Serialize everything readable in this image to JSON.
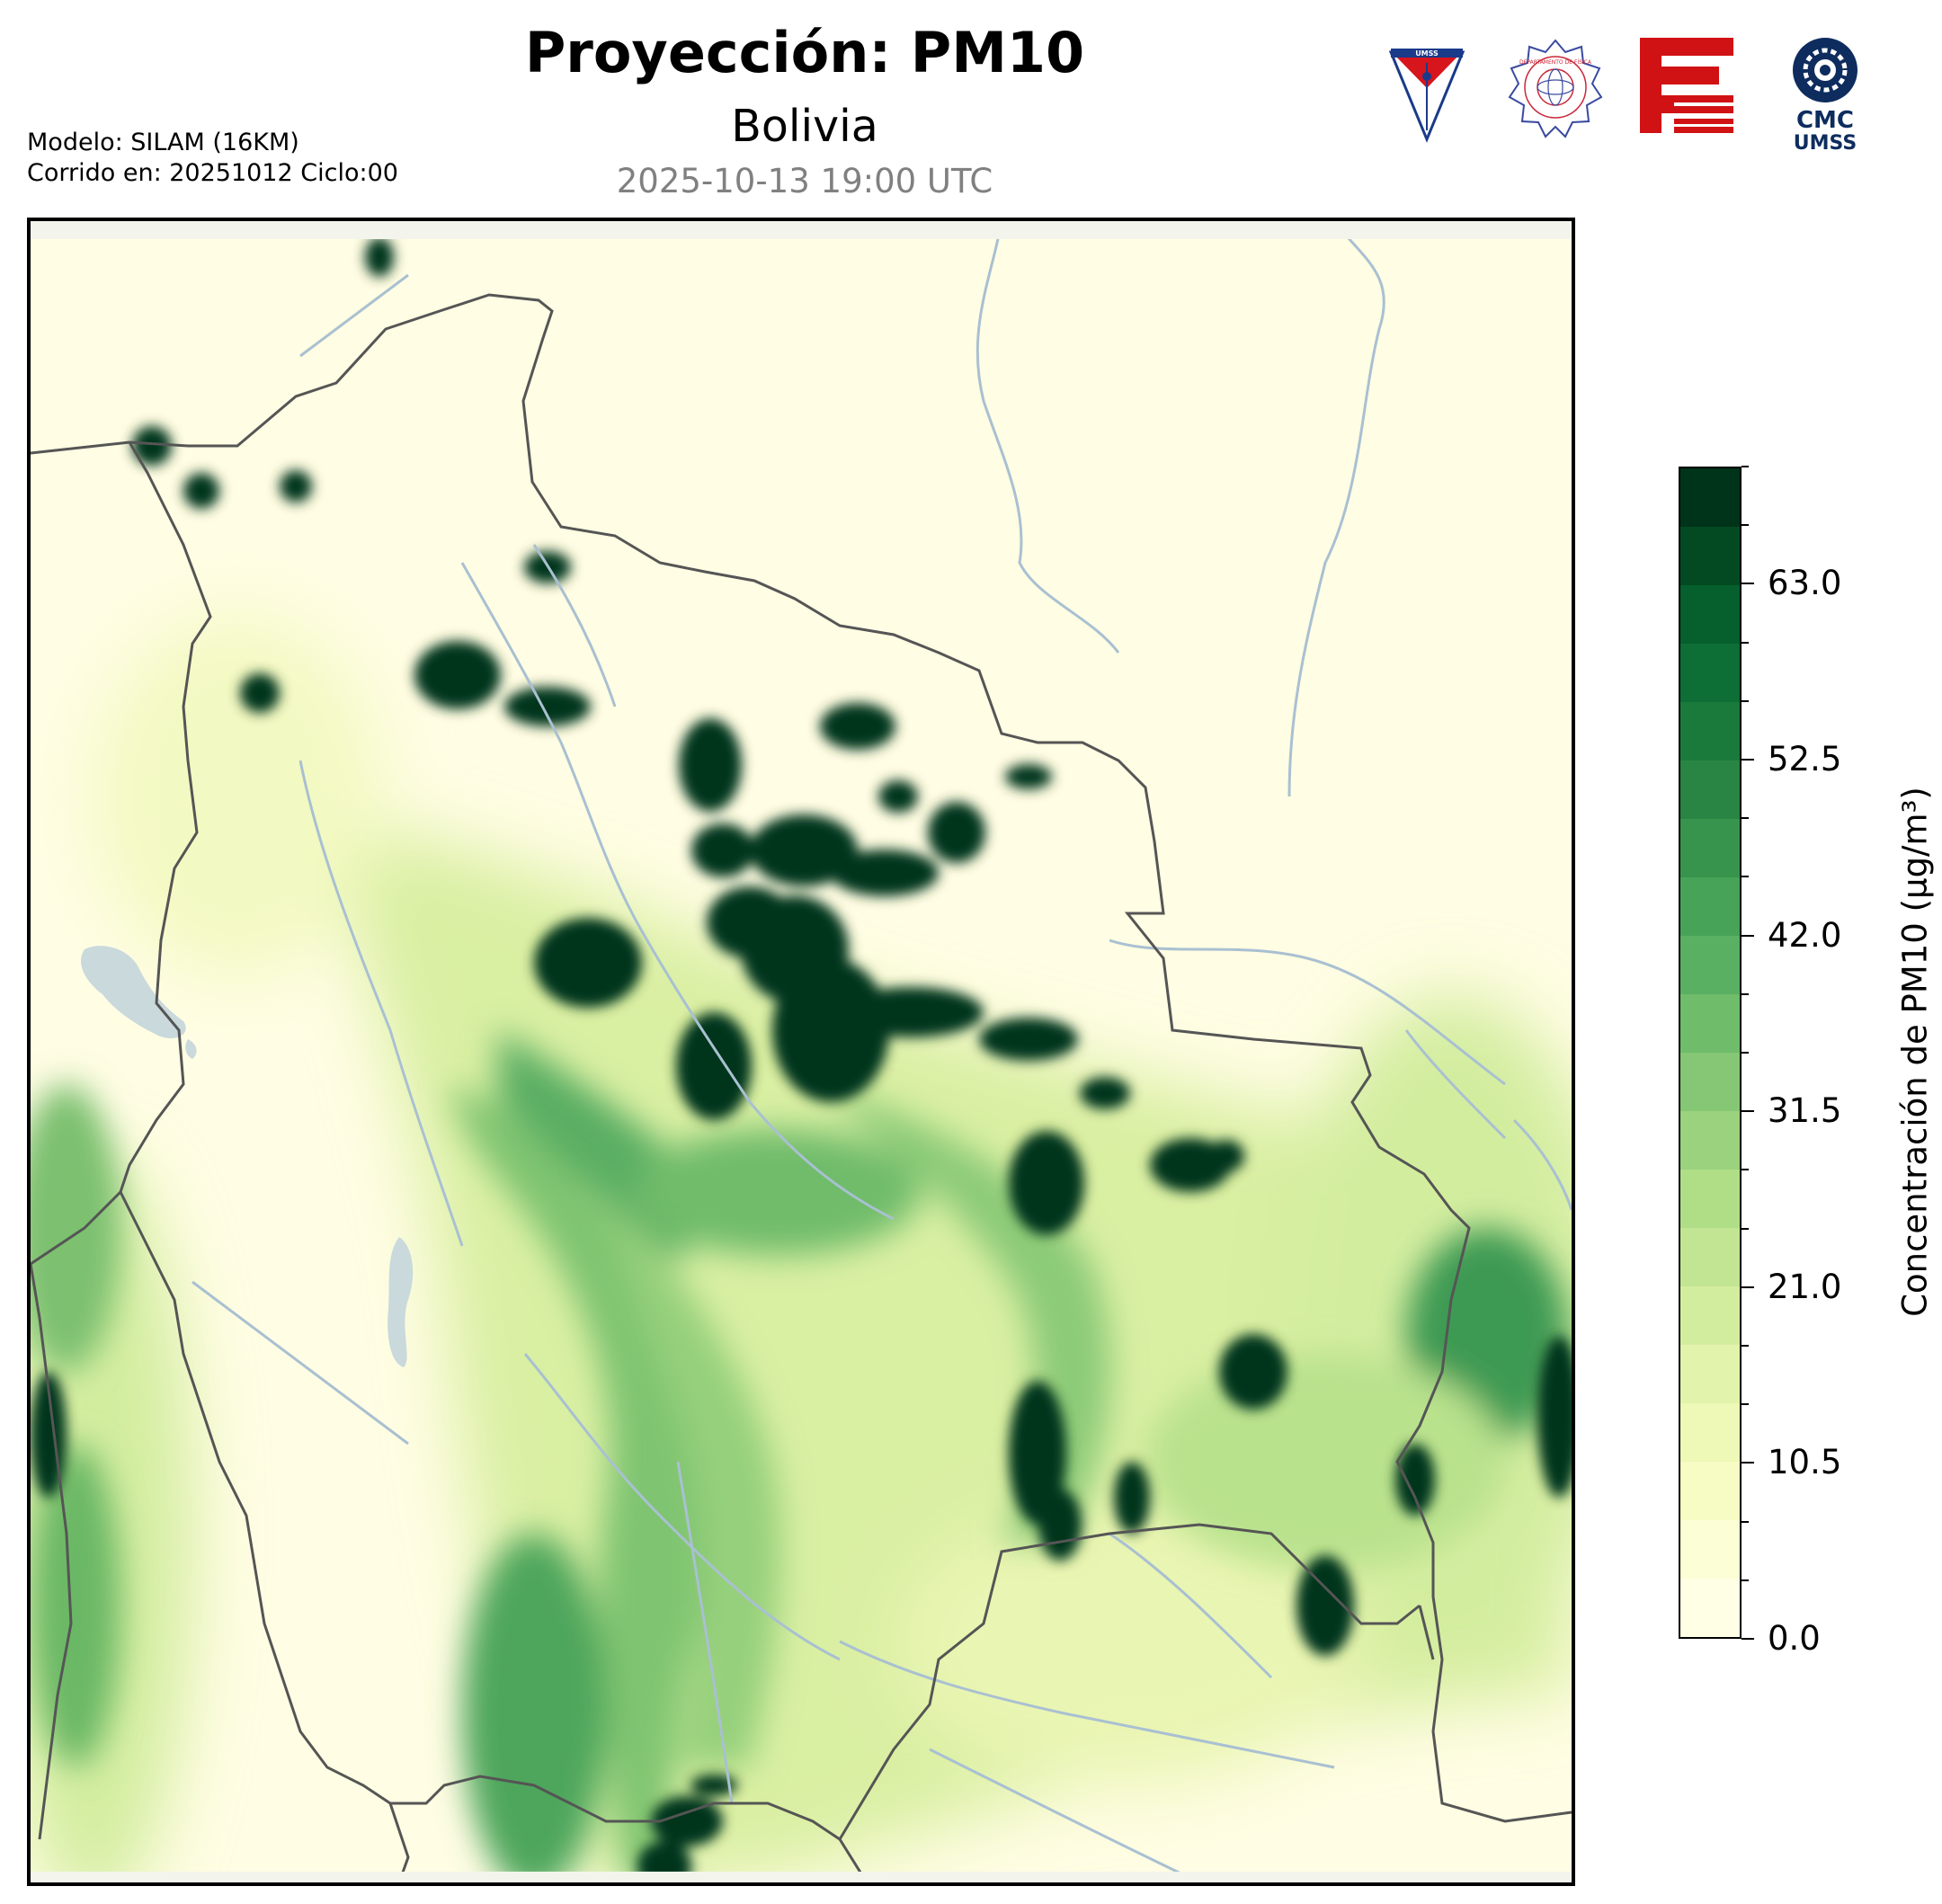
{
  "header": {
    "title": "Proyección: PM10",
    "subtitle": "Bolivia",
    "datetime": "2025-10-13 19:00 UTC",
    "model_line": "Modelo: SILAM (16KM)",
    "run_line": "Corrido en: 20251012 Ciclo:00"
  },
  "logos": [
    {
      "icon": "umss-shield-logo",
      "text": "UMSS"
    },
    {
      "icon": "departamento-fisica-seal-logo",
      "text": "DEPARTAMENTO DE FÍSICA"
    },
    {
      "icon": "red-fcyt-logo"
    },
    {
      "icon": "cmc-umss-logo",
      "text_line1": "CMC",
      "text_line2": "UMSS"
    }
  ],
  "colorbar": {
    "label": "Concentración de PM10 (μg/m³)",
    "min": 0.0,
    "max": 70.0,
    "ticks": [
      "0.0",
      "10.5",
      "21.0",
      "31.5",
      "42.0",
      "52.5",
      "63.0"
    ],
    "tick_values": [
      0,
      10.5,
      21,
      31.5,
      42,
      52.5,
      63
    ],
    "levels": 20,
    "colors": [
      "#ffffe5",
      "#fcfed6",
      "#f7fcc4",
      "#eef8b7",
      "#e2f3ab",
      "#d3ed9f",
      "#c1e592",
      "#afde87",
      "#9bd27d",
      "#85c774",
      "#6fbc6b",
      "#5ab062",
      "#46a357",
      "#36944c",
      "#288543",
      "#1a7a3c",
      "#0d6e36",
      "#05602d",
      "#034a23",
      "#00341a"
    ]
  },
  "map": {
    "region": "Bolivia",
    "background_color": "#fffde3",
    "border_color": "#555555",
    "river_color": "#a9c0d2",
    "lake_color": "#c9d9dc"
  }
}
